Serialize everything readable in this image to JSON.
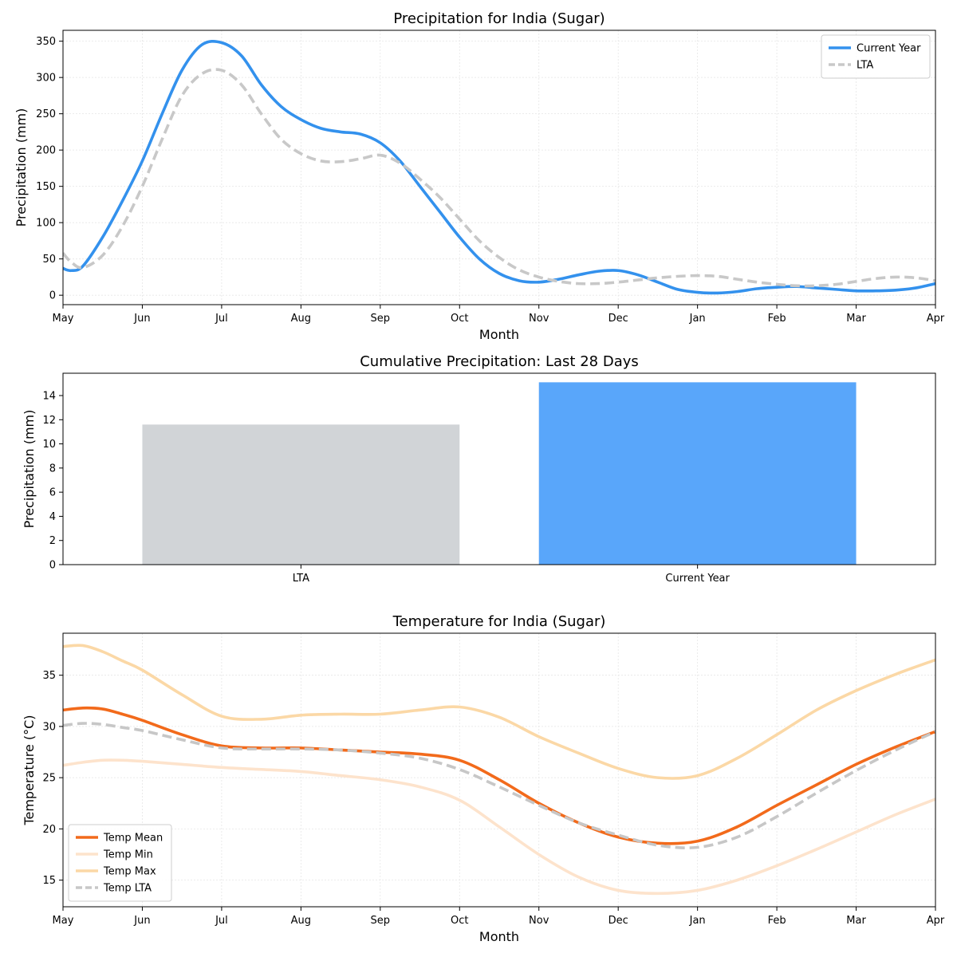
{
  "chart_data": [
    {
      "type": "line",
      "title": "Precipitation for India (Sugar)",
      "xlabel": "Month",
      "ylabel": "Precipitation (mm)",
      "categories": [
        "May",
        "Jun",
        "Jul",
        "Aug",
        "Sep",
        "Oct",
        "Nov",
        "Dec",
        "Jan",
        "Feb",
        "Mar",
        "Apr"
      ],
      "xlim": [
        0,
        11
      ],
      "ylim": [
        -13,
        365
      ],
      "yticks": [
        0,
        50,
        100,
        150,
        200,
        250,
        300,
        350
      ],
      "grid": true,
      "legend_position": "upper right",
      "series": [
        {
          "name": "Current Year",
          "color": "#3391ed",
          "style": "solid",
          "x": [
            0,
            0.1,
            0.25,
            0.5,
            0.75,
            1,
            1.25,
            1.5,
            1.75,
            2,
            2.25,
            2.5,
            2.75,
            3,
            3.25,
            3.5,
            3.75,
            4,
            4.25,
            4.5,
            4.75,
            5,
            5.25,
            5.5,
            5.75,
            6,
            6.25,
            6.5,
            6.75,
            7,
            7.25,
            7.5,
            7.75,
            8,
            8.25,
            8.5,
            8.75,
            9,
            9.25,
            9.5,
            9.75,
            10,
            10.25,
            10.5,
            10.75,
            11
          ],
          "values": [
            37,
            34,
            40,
            80,
            130,
            185,
            250,
            310,
            345,
            348,
            330,
            290,
            260,
            242,
            230,
            225,
            222,
            210,
            185,
            150,
            115,
            80,
            50,
            30,
            20,
            18,
            22,
            28,
            33,
            34,
            28,
            18,
            8,
            4,
            3,
            5,
            9,
            11,
            12,
            10,
            8,
            6,
            6,
            7,
            10,
            16
          ]
        },
        {
          "name": "LTA",
          "color": "#c8c8c8",
          "style": "dashed",
          "x": [
            0,
            0.1,
            0.25,
            0.5,
            0.75,
            1,
            1.25,
            1.5,
            1.75,
            2,
            2.25,
            2.5,
            2.75,
            3,
            3.25,
            3.5,
            3.75,
            4,
            4.25,
            4.5,
            4.75,
            5,
            5.25,
            5.5,
            5.75,
            6,
            6.25,
            6.5,
            6.75,
            7,
            7.25,
            7.5,
            7.75,
            8,
            8.25,
            8.5,
            8.75,
            9,
            9.25,
            9.5,
            9.75,
            10,
            10.25,
            10.5,
            10.75,
            11
          ],
          "values": [
            58,
            46,
            38,
            55,
            95,
            150,
            215,
            275,
            305,
            310,
            290,
            250,
            215,
            195,
            185,
            184,
            188,
            193,
            182,
            160,
            135,
            105,
            75,
            52,
            35,
            25,
            19,
            16,
            16,
            18,
            21,
            24,
            26,
            27,
            26,
            22,
            18,
            15,
            13,
            13,
            15,
            19,
            23,
            25,
            24,
            20
          ]
        }
      ]
    },
    {
      "type": "bar",
      "title": "Cumulative Precipitation: Last 28 Days",
      "xlabel": "",
      "ylabel": "Precipitation (mm)",
      "categories": [
        "LTA",
        "Current Year"
      ],
      "values": [
        11.6,
        15.1
      ],
      "colors": [
        "#d1d4d7",
        "#59a6fa"
      ],
      "ylim": [
        0,
        15.85
      ],
      "yticks": [
        0,
        2,
        4,
        6,
        8,
        10,
        12,
        14
      ],
      "grid": false
    },
    {
      "type": "line",
      "title": "Temperature for India (Sugar)",
      "xlabel": "Month",
      "ylabel": "Temperature (°C)",
      "categories": [
        "May",
        "Jun",
        "Jul",
        "Aug",
        "Sep",
        "Oct",
        "Nov",
        "Dec",
        "Jan",
        "Feb",
        "Mar",
        "Apr"
      ],
      "xlim": [
        0,
        11
      ],
      "ylim": [
        12.4,
        39.1
      ],
      "yticks": [
        15,
        20,
        25,
        30,
        35
      ],
      "grid": true,
      "legend_position": "lower left",
      "series": [
        {
          "name": "Temp Mean",
          "color": "#f26a1b",
          "style": "solid",
          "x": [
            0,
            0.25,
            0.5,
            0.75,
            1,
            1.5,
            2,
            2.5,
            3,
            3.5,
            4,
            4.5,
            5,
            5.5,
            6,
            6.5,
            7,
            7.5,
            8,
            8.5,
            9,
            9.5,
            10,
            10.5,
            11
          ],
          "values": [
            31.6,
            31.8,
            31.7,
            31.2,
            30.6,
            29.2,
            28.1,
            27.9,
            27.9,
            27.7,
            27.5,
            27.3,
            26.7,
            24.8,
            22.5,
            20.6,
            19.2,
            18.6,
            18.8,
            20.2,
            22.3,
            24.3,
            26.3,
            28.0,
            29.5
          ]
        },
        {
          "name": "Temp Min",
          "color": "#fde3cc",
          "style": "solid",
          "x": [
            0,
            0.25,
            0.5,
            0.75,
            1,
            1.5,
            2,
            2.5,
            3,
            3.5,
            4,
            4.5,
            5,
            5.5,
            6,
            6.5,
            7,
            7.5,
            8,
            8.5,
            9,
            9.5,
            10,
            10.5,
            11
          ],
          "values": [
            26.2,
            26.5,
            26.7,
            26.7,
            26.6,
            26.3,
            26.0,
            25.8,
            25.6,
            25.2,
            24.8,
            24.1,
            22.8,
            20.2,
            17.5,
            15.3,
            14.0,
            13.7,
            14.0,
            15.0,
            16.4,
            18.0,
            19.7,
            21.4,
            22.9
          ]
        },
        {
          "name": "Temp Max",
          "color": "#fbd8a6",
          "style": "solid",
          "x": [
            0,
            0.25,
            0.5,
            0.75,
            1,
            1.5,
            2,
            2.5,
            3,
            3.5,
            4,
            4.5,
            5,
            5.5,
            6,
            6.5,
            7,
            7.5,
            8,
            8.5,
            9,
            9.5,
            10,
            10.5,
            11
          ],
          "values": [
            37.8,
            37.9,
            37.3,
            36.4,
            35.5,
            33.1,
            31.0,
            30.7,
            31.1,
            31.2,
            31.2,
            31.6,
            31.9,
            30.9,
            29.0,
            27.4,
            25.9,
            25.0,
            25.2,
            26.9,
            29.2,
            31.6,
            33.5,
            35.1,
            36.5
          ]
        },
        {
          "name": "Temp LTA",
          "color": "#c7c7c7",
          "style": "dashed",
          "x": [
            0,
            0.25,
            0.5,
            0.75,
            1,
            1.5,
            2,
            2.5,
            3,
            3.5,
            4,
            4.5,
            5,
            5.5,
            6,
            6.5,
            7,
            7.5,
            8,
            8.5,
            9,
            9.5,
            10,
            10.5,
            11
          ],
          "values": [
            30.1,
            30.3,
            30.2,
            29.9,
            29.6,
            28.7,
            27.9,
            27.8,
            27.8,
            27.7,
            27.4,
            26.9,
            25.8,
            24.1,
            22.3,
            20.6,
            19.4,
            18.4,
            18.2,
            19.2,
            21.2,
            23.5,
            25.7,
            27.7,
            29.5
          ]
        }
      ]
    }
  ]
}
